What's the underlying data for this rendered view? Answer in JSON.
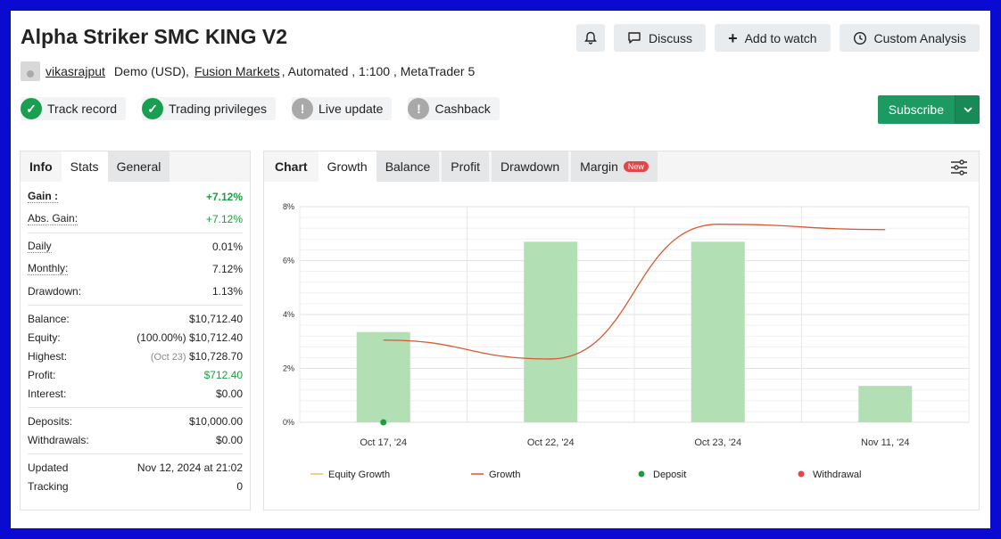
{
  "header": {
    "title": "Alpha Striker SMC KING V2",
    "discuss_label": "Discuss",
    "add_watch_label": "Add to watch",
    "custom_analysis_label": "Custom Analysis"
  },
  "meta": {
    "author": "vikasrajput",
    "account_type": "Demo (USD),",
    "broker": "Fusion Markets",
    "details": ", Automated , 1:100 , MetaTrader 5"
  },
  "badges": [
    {
      "label": "Track record",
      "status": "ok",
      "icon": "check-icon"
    },
    {
      "label": "Trading privileges",
      "status": "ok",
      "icon": "check-icon"
    },
    {
      "label": "Live update",
      "status": "warn",
      "icon": "exclamation-icon"
    },
    {
      "label": "Cashback",
      "status": "warn",
      "icon": "exclamation-icon"
    }
  ],
  "subscribe": {
    "label": "Subscribe"
  },
  "left_tabs": {
    "info": "Info",
    "stats": "Stats",
    "general": "General"
  },
  "stats": {
    "gain_label": "Gain :",
    "gain_value": "+7.12%",
    "abs_gain_label": "Abs. Gain:",
    "abs_gain_value": "+7.12%",
    "daily_label": "Daily",
    "daily_value": "0.01%",
    "monthly_label": "Monthly:",
    "monthly_value": "7.12%",
    "drawdown_label": "Drawdown:",
    "drawdown_value": "1.13%",
    "balance_label": "Balance:",
    "balance_value": "$10,712.40",
    "equity_label": "Equity:",
    "equity_pct": "(100.00%)",
    "equity_value": "$10,712.40",
    "highest_label": "Highest:",
    "highest_date": "(Oct 23)",
    "highest_value": "$10,728.70",
    "profit_label": "Profit:",
    "profit_value": "$712.40",
    "interest_label": "Interest:",
    "interest_value": "$0.00",
    "deposits_label": "Deposits:",
    "deposits_value": "$10,000.00",
    "withdrawals_label": "Withdrawals:",
    "withdrawals_value": "$0.00",
    "updated_label": "Updated",
    "updated_value": "Nov 12, 2024 at 21:02",
    "tracking_label": "Tracking",
    "tracking_value": "0"
  },
  "chart_tabs": {
    "chart": "Chart",
    "growth": "Growth",
    "balance": "Balance",
    "profit": "Profit",
    "drawdown": "Drawdown",
    "margin": "Margin",
    "new_badge": "New"
  },
  "colors": {
    "bar": "#b2dfb3",
    "growth_line": "#d9582f",
    "equity_line": "#e8c060",
    "deposit": "#1a9e3e",
    "withdrawal": "#e04848",
    "accent": "#1c9a62"
  },
  "chart_data": {
    "type": "bar",
    "categories": [
      "Oct 17, '24",
      "Oct 22, '24",
      "Oct 23, '24",
      "Nov 11, '24"
    ],
    "y_ticks": [
      "0%",
      "2%",
      "4%",
      "6%",
      "8%"
    ],
    "ylim": [
      0,
      8
    ],
    "series": [
      {
        "name": "Equity Growth",
        "kind": "bar",
        "values": [
          3.35,
          6.7,
          6.7,
          1.35
        ]
      },
      {
        "name": "Growth",
        "kind": "line",
        "values": [
          3.05,
          2.35,
          7.35,
          7.15
        ]
      }
    ],
    "deposit_points": [
      {
        "category": "Oct 17, '24",
        "value": 0
      }
    ],
    "legend": [
      {
        "label": "Equity Growth",
        "type": "line",
        "color": "#e8c060"
      },
      {
        "label": "Growth",
        "type": "line",
        "color": "#d9582f"
      },
      {
        "label": "Deposit",
        "type": "dot",
        "color": "#1a9e3e"
      },
      {
        "label": "Withdrawal",
        "type": "dot",
        "color": "#e04848"
      }
    ],
    "grid": true
  }
}
